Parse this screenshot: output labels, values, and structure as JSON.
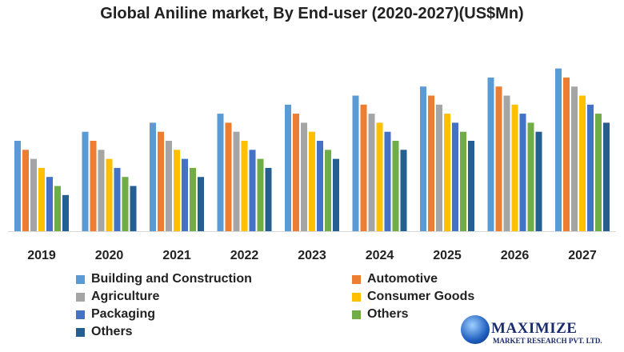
{
  "chart_data": {
    "type": "bar",
    "title": "Global Aniline market, By End-user (2020-2027)(US$Mn)",
    "categories": [
      "2019",
      "2020",
      "2021",
      "2022",
      "2023",
      "2024",
      "2025",
      "2026",
      "2027"
    ],
    "series": [
      {
        "name": "Building and Construction",
        "color": "#5b9bd5",
        "values": [
          10,
          11,
          12,
          13,
          14,
          15,
          16,
          17,
          18
        ]
      },
      {
        "name": "Automotive",
        "color": "#ed7d31",
        "values": [
          9,
          10,
          11,
          12,
          13,
          14,
          15,
          16,
          17
        ]
      },
      {
        "name": "Agriculture",
        "color": "#a5a5a5",
        "values": [
          8,
          9,
          10,
          11,
          12,
          13,
          14,
          15,
          16
        ]
      },
      {
        "name": "Consumer Goods",
        "color": "#ffc000",
        "values": [
          7,
          8,
          9,
          10,
          11,
          12,
          13,
          14,
          15
        ]
      },
      {
        "name": "Packaging",
        "color": "#4472c4",
        "values": [
          6,
          7,
          8,
          9,
          10,
          11,
          12,
          13,
          14
        ]
      },
      {
        "name": "Others",
        "color": "#70ad47",
        "values": [
          5,
          6,
          7,
          8,
          9,
          10,
          11,
          12,
          13
        ]
      },
      {
        "name": "Others",
        "color": "#255e91",
        "values": [
          4,
          5,
          6,
          7,
          8,
          9,
          10,
          11,
          12
        ]
      }
    ],
    "xlabel": "",
    "ylabel": "",
    "grid": false,
    "legend": "bottom"
  },
  "logo": {
    "name": "MAXIMIZE",
    "sub": "MARKET RESEARCH PVT. LTD."
  }
}
